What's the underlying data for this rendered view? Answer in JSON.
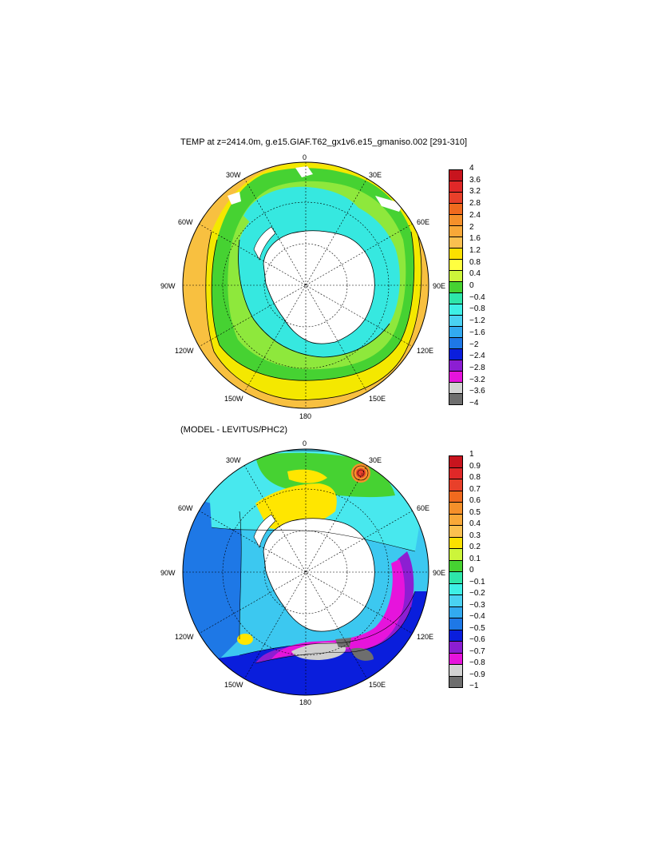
{
  "panel1": {
    "title": "TEMP at z=2414.0m, g.e15.GIAF.T62_gx1v6.e15_gmaniso.002 [291-310]",
    "lon_labels": {
      "n": "0",
      "e30": "30E",
      "e60": "60E",
      "e90": "90E",
      "e120": "120E",
      "e150": "150E",
      "s": "180",
      "w150": "150W",
      "w120": "120W",
      "w90": "90W",
      "w60": "60W",
      "w30": "30W"
    },
    "colorbar": {
      "labels": [
        "4",
        "3.6",
        "3.2",
        "2.8",
        "2.4",
        "2",
        "1.6",
        "1.2",
        "0.8",
        "0.4",
        "0",
        "−0.4",
        "−0.8",
        "−1.2",
        "−1.6",
        "−2",
        "−2.4",
        "−2.8",
        "−3.2",
        "−3.6",
        "−4"
      ],
      "colors": [
        "#c8141e",
        "#e02828",
        "#e8402a",
        "#f06a1e",
        "#f5902a",
        "#f8a838",
        "#fac050",
        "#fbe000",
        "#ffff40",
        "#ccf53a",
        "#46d232",
        "#2ee6aa",
        "#3ef0e6",
        "#4ad2f2",
        "#32aaf0",
        "#1e78e6",
        "#0a1edc",
        "#8c1ed2",
        "#e614dc",
        "#d2d2d2",
        "#6e6e6e"
      ]
    }
  },
  "panel2": {
    "title": "(MODEL - LEVITUS/PHC2)",
    "lon_labels": {
      "n": "0",
      "e30": "30E",
      "e60": "60E",
      "e90": "90E",
      "e120": "120E",
      "e150": "150E",
      "s": "180",
      "w150": "150W",
      "w120": "120W",
      "w90": "90W",
      "w60": "60W",
      "w30": "30W"
    },
    "colorbar": {
      "labels": [
        "1",
        "0.9",
        "0.8",
        "0.7",
        "0.6",
        "0.5",
        "0.4",
        "0.3",
        "0.2",
        "0.1",
        "0",
        "−0.1",
        "−0.2",
        "−0.3",
        "−0.4",
        "−0.5",
        "−0.6",
        "−0.7",
        "−0.8",
        "−0.9",
        "−1"
      ],
      "colors": [
        "#c8141e",
        "#e02828",
        "#e8402a",
        "#f06a1e",
        "#f5902a",
        "#f8a838",
        "#fac050",
        "#fbe000",
        "#ccf53a",
        "#46d232",
        "#2ee6aa",
        "#3ef0e6",
        "#4ad2f2",
        "#32aaf0",
        "#1e78e6",
        "#0a1edc",
        "#8c1ed2",
        "#e614dc",
        "#d2d2d2",
        "#6e6e6e"
      ]
    }
  },
  "colors": {
    "warm_outer": "#f8c040",
    "yellow": "#f4e800",
    "green_light": "#aaf040",
    "green": "#46d232",
    "cyan": "#36e8e0",
    "land": "#ffffff",
    "coast": "#000000",
    "anom_blue": "#1e78e6",
    "anom_lightblue": "#3cc8f0",
    "anom_cyan": "#48e8ee",
    "anom_darkblue": "#0a1edc",
    "anom_purple": "#8c1ed2",
    "anom_magenta": "#e614dc",
    "anom_gray": "#cfcfcf",
    "anom_yellow": "#ffe600",
    "anom_green": "#46d232"
  }
}
